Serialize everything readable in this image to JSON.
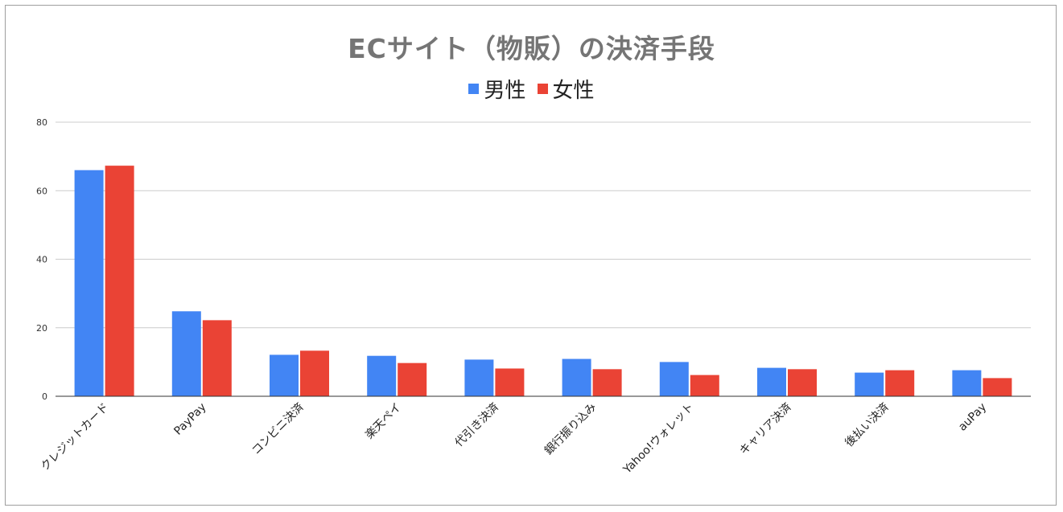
{
  "chart_data": {
    "type": "bar",
    "title": "ECサイト（物販）の決済手段",
    "categories": [
      "クレジットカード",
      "PayPay",
      "コンビニ決済",
      "楽天ペイ",
      "代引き決済",
      "銀行振り込み",
      "Yahoo!ウォレット",
      "キャリア決済",
      "後払い決済",
      "auPay"
    ],
    "series": [
      {
        "name": "男性",
        "color": "#4285f4",
        "values": [
          66,
          24.8,
          12.1,
          11.8,
          10.7,
          10.9,
          10,
          8.3,
          6.9,
          7.6
        ]
      },
      {
        "name": "女性",
        "color": "#ea4335",
        "values": [
          67.3,
          22.2,
          13.3,
          9.7,
          8.1,
          7.9,
          6.2,
          7.9,
          7.6,
          5.3
        ]
      }
    ],
    "ylim": [
      0,
      80
    ],
    "yticks": [
      0,
      20,
      40,
      60,
      80
    ],
    "grid": true,
    "legend": "top-center"
  }
}
